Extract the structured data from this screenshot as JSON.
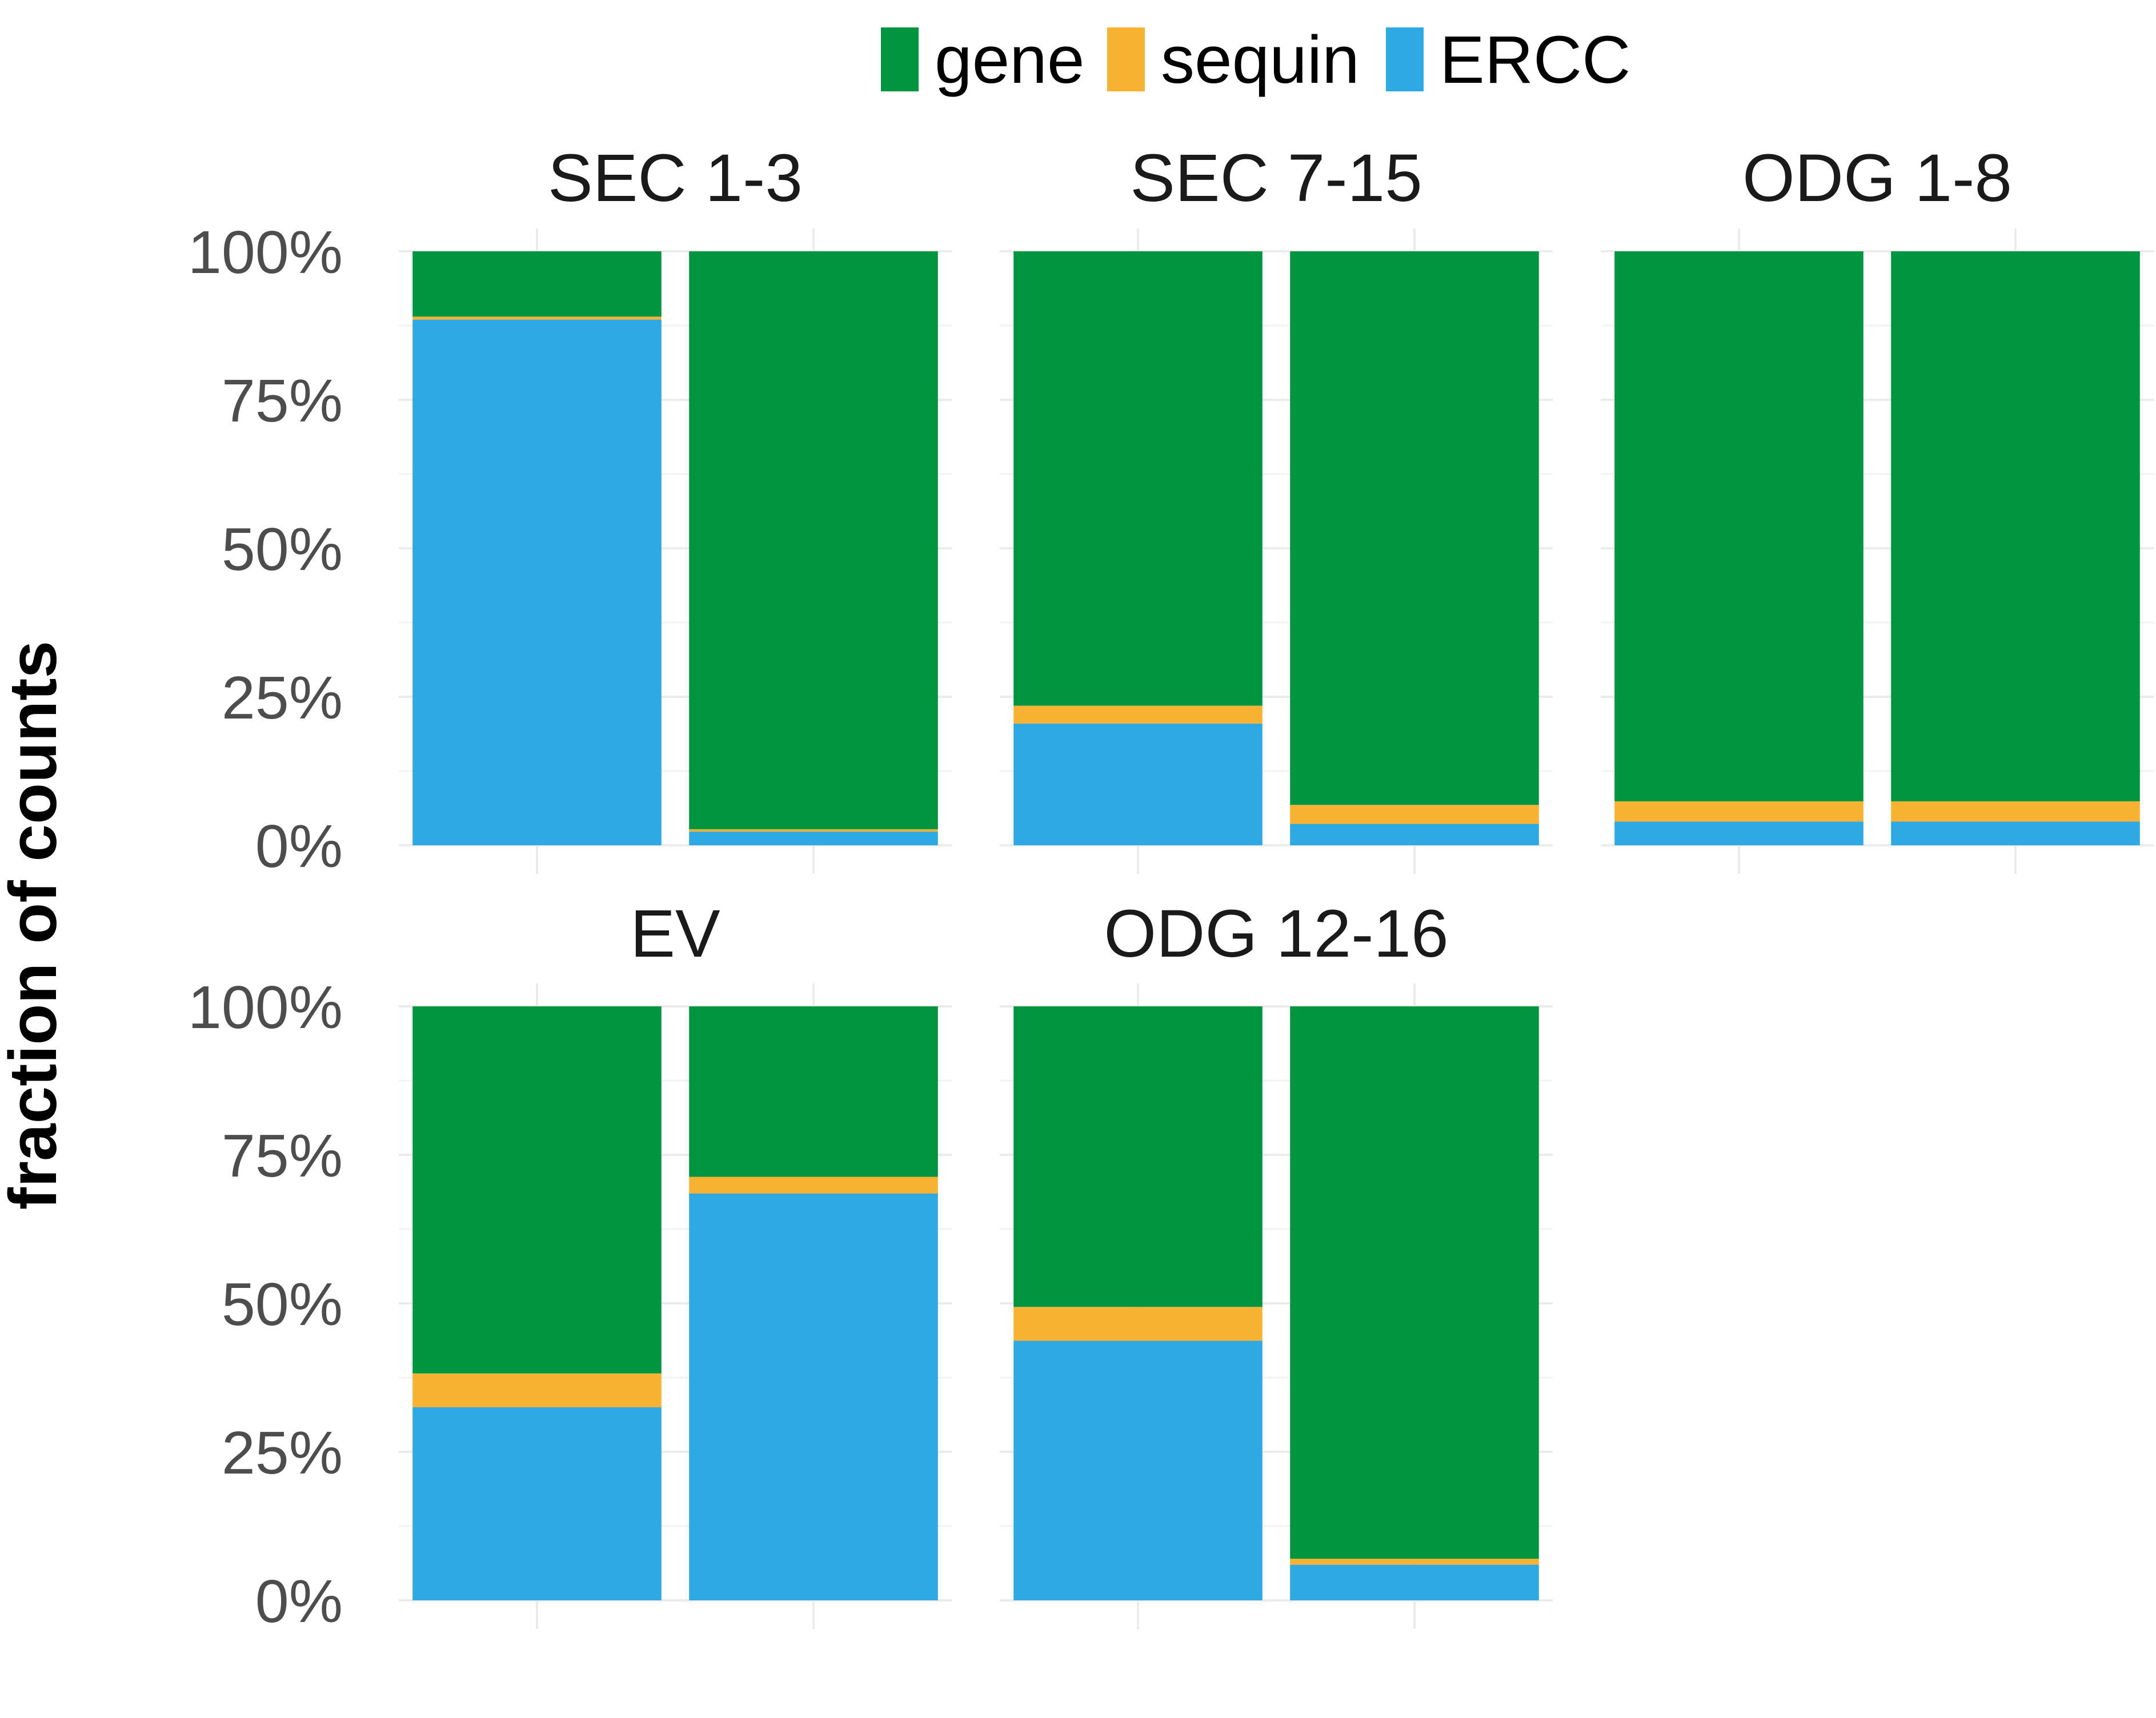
{
  "chart_data": {
    "type": "bar",
    "stacked": true,
    "ylabel": "fraction of counts",
    "xlabel": "",
    "ylim": [
      0,
      1
    ],
    "yticks": [
      "0%",
      "25%",
      "50%",
      "75%",
      "100%"
    ],
    "grid": true,
    "legend_position": "top",
    "series": [
      {
        "name": "gene",
        "color": "#009640"
      },
      {
        "name": "sequin",
        "color": "#F9B233"
      },
      {
        "name": "ERCC",
        "color": "#2FA9E1"
      }
    ],
    "panels": [
      {
        "title": "SEC 1-3",
        "bars": [
          {
            "ERCC": 0.885,
            "sequin": 0.005,
            "gene": 0.11
          },
          {
            "ERCC": 0.023,
            "sequin": 0.004,
            "gene": 0.973
          }
        ]
      },
      {
        "title": "SEC 7-15",
        "bars": [
          {
            "ERCC": 0.205,
            "sequin": 0.03,
            "gene": 0.765
          },
          {
            "ERCC": 0.036,
            "sequin": 0.032,
            "gene": 0.932
          }
        ]
      },
      {
        "title": "ODG 1-8",
        "bars": [
          {
            "ERCC": 0.04,
            "sequin": 0.034,
            "gene": 0.926
          },
          {
            "ERCC": 0.04,
            "sequin": 0.034,
            "gene": 0.926
          }
        ]
      },
      {
        "title": "EV",
        "bars": [
          {
            "ERCC": 0.325,
            "sequin": 0.057,
            "gene": 0.618
          },
          {
            "ERCC": 0.685,
            "sequin": 0.028,
            "gene": 0.287
          }
        ]
      },
      {
        "title": "ODG 12-16",
        "bars": [
          {
            "ERCC": 0.437,
            "sequin": 0.057,
            "gene": 0.506
          },
          {
            "ERCC": 0.06,
            "sequin": 0.01,
            "gene": 0.93
          }
        ]
      }
    ]
  }
}
